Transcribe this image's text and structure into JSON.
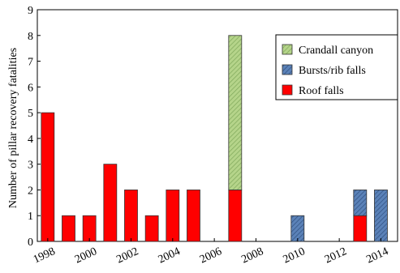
{
  "chart_data": {
    "type": "bar",
    "stacked": true,
    "title": "",
    "xlabel": "",
    "ylabel": "Number of pillar recovery fatalities",
    "ylim": [
      0,
      9
    ],
    "yticks": [
      0,
      1,
      2,
      3,
      4,
      5,
      6,
      7,
      8,
      9
    ],
    "xlim": [
      1997.5,
      2014.8
    ],
    "xticks": [
      "1998",
      "2000",
      "2002",
      "2004",
      "2006",
      "2008",
      "2010",
      "2012",
      "2014"
    ],
    "x": [
      1998,
      1999,
      2000,
      2001,
      2002,
      2003,
      2004,
      2005,
      2007,
      2010,
      2013,
      2014
    ],
    "series": [
      {
        "name": "Roof falls",
        "color": "#ff0000",
        "pattern": "solid",
        "values": [
          5,
          1,
          1,
          3,
          2,
          1,
          2,
          2,
          2,
          0,
          1,
          0
        ]
      },
      {
        "name": "Bursts/rib falls",
        "color": "#4a6fa5",
        "pattern": "hatched-blue",
        "values": [
          0,
          0,
          0,
          0,
          0,
          0,
          0,
          0,
          0,
          1,
          1,
          2
        ]
      },
      {
        "name": "Crandall canyon",
        "color": "#a9c97a",
        "pattern": "hatched-green",
        "values": [
          0,
          0,
          0,
          0,
          0,
          0,
          0,
          0,
          6,
          0,
          0,
          0
        ]
      }
    ],
    "legend": {
      "position": "top-right",
      "order": [
        "Crandall canyon",
        "Bursts/rib falls",
        "Roof falls"
      ]
    },
    "grid": false
  }
}
